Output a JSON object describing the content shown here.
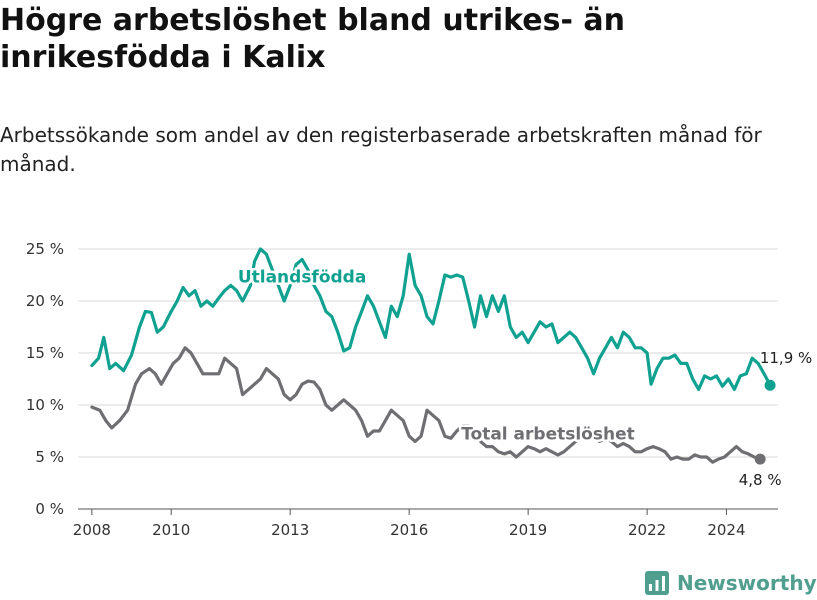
{
  "title": "Högre arbetslöshet bland utrikes- än inrikesfödda i Kalix",
  "subtitle": "Arbetssökande som andel av den registerbaserade arbetskraften månad för månad.",
  "brand": "Newsworthy",
  "colors": {
    "utlandsfodda": "#10a191",
    "total": "#6f6f73",
    "grid": "#d9d9d9",
    "axis": "#555555",
    "brand": "#4f9e8e"
  },
  "chart_data": {
    "type": "line",
    "xlabel": "",
    "ylabel": "",
    "xlim": [
      2007.65,
      2025.3
    ],
    "ylim": [
      0,
      25
    ],
    "grid": true,
    "y_ticks": [
      {
        "value": 0,
        "label": "0 %"
      },
      {
        "value": 5,
        "label": "5 %"
      },
      {
        "value": 10,
        "label": "10 %"
      },
      {
        "value": 15,
        "label": "15 %"
      },
      {
        "value": 20,
        "label": "20 %"
      },
      {
        "value": 25,
        "label": "25 %"
      }
    ],
    "x_ticks": [
      {
        "value": 2008,
        "label": "2008"
      },
      {
        "value": 2010,
        "label": "2010"
      },
      {
        "value": 2013,
        "label": "2013"
      },
      {
        "value": 2016,
        "label": "2016"
      },
      {
        "value": 2019,
        "label": "2019"
      },
      {
        "value": 2022,
        "label": "2022"
      },
      {
        "value": 2024,
        "label": "2024"
      }
    ],
    "series": [
      {
        "name": "Utlandsfödda",
        "color": "#10a191",
        "end_label": "11,9 %",
        "points": [
          [
            2008.0,
            13.8
          ],
          [
            2008.17,
            14.5
          ],
          [
            2008.3,
            16.5
          ],
          [
            2008.45,
            13.5
          ],
          [
            2008.6,
            14.0
          ],
          [
            2008.8,
            13.3
          ],
          [
            2009.0,
            14.8
          ],
          [
            2009.2,
            17.5
          ],
          [
            2009.35,
            19.0
          ],
          [
            2009.5,
            18.9
          ],
          [
            2009.65,
            17.0
          ],
          [
            2009.8,
            17.5
          ],
          [
            2010.0,
            19.0
          ],
          [
            2010.15,
            20.0
          ],
          [
            2010.3,
            21.3
          ],
          [
            2010.45,
            20.5
          ],
          [
            2010.6,
            21.0
          ],
          [
            2010.75,
            19.5
          ],
          [
            2010.9,
            20.0
          ],
          [
            2011.05,
            19.5
          ],
          [
            2011.2,
            20.3
          ],
          [
            2011.35,
            21.0
          ],
          [
            2011.5,
            21.5
          ],
          [
            2011.65,
            21.0
          ],
          [
            2011.8,
            20.0
          ],
          [
            2012.0,
            21.5
          ],
          [
            2012.1,
            23.8
          ],
          [
            2012.25,
            25.0
          ],
          [
            2012.4,
            24.5
          ],
          [
            2012.55,
            23.0
          ],
          [
            2012.7,
            21.5
          ],
          [
            2012.85,
            20.0
          ],
          [
            2013.0,
            21.5
          ],
          [
            2013.15,
            23.5
          ],
          [
            2013.3,
            24.0
          ],
          [
            2013.45,
            23.0
          ],
          [
            2013.6,
            21.5
          ],
          [
            2013.75,
            20.5
          ],
          [
            2013.9,
            19.0
          ],
          [
            2014.05,
            18.5
          ],
          [
            2014.2,
            17.0
          ],
          [
            2014.35,
            15.2
          ],
          [
            2014.5,
            15.5
          ],
          [
            2014.65,
            17.5
          ],
          [
            2014.8,
            19.0
          ],
          [
            2014.95,
            20.5
          ],
          [
            2015.1,
            19.5
          ],
          [
            2015.25,
            18.0
          ],
          [
            2015.4,
            16.5
          ],
          [
            2015.55,
            19.5
          ],
          [
            2015.7,
            18.5
          ],
          [
            2015.85,
            20.5
          ],
          [
            2016.0,
            24.5
          ],
          [
            2016.15,
            21.5
          ],
          [
            2016.3,
            20.5
          ],
          [
            2016.45,
            18.5
          ],
          [
            2016.6,
            17.8
          ],
          [
            2016.75,
            20.0
          ],
          [
            2016.9,
            22.5
          ],
          [
            2017.05,
            22.3
          ],
          [
            2017.2,
            22.5
          ],
          [
            2017.35,
            22.3
          ],
          [
            2017.5,
            20.0
          ],
          [
            2017.65,
            17.5
          ],
          [
            2017.8,
            20.5
          ],
          [
            2017.95,
            18.5
          ],
          [
            2018.1,
            20.5
          ],
          [
            2018.25,
            19.0
          ],
          [
            2018.4,
            20.5
          ],
          [
            2018.55,
            17.5
          ],
          [
            2018.7,
            16.5
          ],
          [
            2018.85,
            17.0
          ],
          [
            2019.0,
            16.0
          ],
          [
            2019.15,
            17.0
          ],
          [
            2019.3,
            18.0
          ],
          [
            2019.45,
            17.5
          ],
          [
            2019.6,
            17.8
          ],
          [
            2019.75,
            16.0
          ],
          [
            2019.9,
            16.5
          ],
          [
            2020.05,
            17.0
          ],
          [
            2020.2,
            16.5
          ],
          [
            2020.35,
            15.5
          ],
          [
            2020.5,
            14.5
          ],
          [
            2020.65,
            13.0
          ],
          [
            2020.8,
            14.5
          ],
          [
            2020.95,
            15.5
          ],
          [
            2021.1,
            16.5
          ],
          [
            2021.25,
            15.5
          ],
          [
            2021.4,
            17.0
          ],
          [
            2021.55,
            16.5
          ],
          [
            2021.7,
            15.5
          ],
          [
            2021.85,
            15.5
          ],
          [
            2022.0,
            15.0
          ],
          [
            2022.1,
            12.0
          ],
          [
            2022.25,
            13.5
          ],
          [
            2022.4,
            14.5
          ],
          [
            2022.55,
            14.5
          ],
          [
            2022.7,
            14.8
          ],
          [
            2022.85,
            14.0
          ],
          [
            2023.0,
            14.0
          ],
          [
            2023.15,
            12.5
          ],
          [
            2023.3,
            11.5
          ],
          [
            2023.45,
            12.8
          ],
          [
            2023.6,
            12.5
          ],
          [
            2023.75,
            12.8
          ],
          [
            2023.9,
            11.8
          ],
          [
            2024.05,
            12.5
          ],
          [
            2024.2,
            11.5
          ],
          [
            2024.35,
            12.8
          ],
          [
            2024.5,
            13.0
          ],
          [
            2024.65,
            14.5
          ],
          [
            2024.8,
            14.0
          ],
          [
            2024.95,
            13.0
          ],
          [
            2025.1,
            11.9
          ]
        ]
      },
      {
        "name": "Total arbetslöshet",
        "color": "#6f6f73",
        "end_label": "4,8 %",
        "points": [
          [
            2008.0,
            9.8
          ],
          [
            2008.2,
            9.5
          ],
          [
            2008.35,
            8.5
          ],
          [
            2008.5,
            7.8
          ],
          [
            2008.7,
            8.5
          ],
          [
            2008.9,
            9.5
          ],
          [
            2009.1,
            12.0
          ],
          [
            2009.25,
            13.0
          ],
          [
            2009.45,
            13.5
          ],
          [
            2009.6,
            13.0
          ],
          [
            2009.75,
            12.0
          ],
          [
            2009.9,
            13.0
          ],
          [
            2010.05,
            14.0
          ],
          [
            2010.2,
            14.5
          ],
          [
            2010.35,
            15.5
          ],
          [
            2010.5,
            15.0
          ],
          [
            2010.65,
            14.0
          ],
          [
            2010.8,
            13.0
          ],
          [
            2011.0,
            13.0
          ],
          [
            2011.2,
            13.0
          ],
          [
            2011.35,
            14.5
          ],
          [
            2011.5,
            14.0
          ],
          [
            2011.65,
            13.5
          ],
          [
            2011.8,
            11.0
          ],
          [
            2011.95,
            11.5
          ],
          [
            2012.1,
            12.0
          ],
          [
            2012.25,
            12.5
          ],
          [
            2012.4,
            13.5
          ],
          [
            2012.55,
            13.0
          ],
          [
            2012.7,
            12.5
          ],
          [
            2012.85,
            11.0
          ],
          [
            2013.0,
            10.5
          ],
          [
            2013.15,
            11.0
          ],
          [
            2013.3,
            12.0
          ],
          [
            2013.45,
            12.3
          ],
          [
            2013.6,
            12.2
          ],
          [
            2013.75,
            11.5
          ],
          [
            2013.9,
            10.0
          ],
          [
            2014.05,
            9.5
          ],
          [
            2014.2,
            10.0
          ],
          [
            2014.35,
            10.5
          ],
          [
            2014.5,
            10.0
          ],
          [
            2014.65,
            9.5
          ],
          [
            2014.8,
            8.5
          ],
          [
            2014.95,
            7.0
          ],
          [
            2015.1,
            7.5
          ],
          [
            2015.25,
            7.5
          ],
          [
            2015.4,
            8.5
          ],
          [
            2015.55,
            9.5
          ],
          [
            2015.7,
            9.0
          ],
          [
            2015.85,
            8.5
          ],
          [
            2016.0,
            7.0
          ],
          [
            2016.15,
            6.5
          ],
          [
            2016.3,
            7.0
          ],
          [
            2016.45,
            9.5
          ],
          [
            2016.6,
            9.0
          ],
          [
            2016.75,
            8.5
          ],
          [
            2016.9,
            7.0
          ],
          [
            2017.05,
            6.8
          ],
          [
            2017.2,
            7.5
          ],
          [
            2017.35,
            8.0
          ],
          [
            2017.5,
            8.0
          ],
          [
            2017.65,
            7.5
          ],
          [
            2017.8,
            6.5
          ],
          [
            2017.95,
            6.0
          ],
          [
            2018.1,
            6.0
          ],
          [
            2018.25,
            5.5
          ],
          [
            2018.4,
            5.3
          ],
          [
            2018.55,
            5.5
          ],
          [
            2018.7,
            5.0
          ],
          [
            2018.85,
            5.5
          ],
          [
            2019.0,
            6.0
          ],
          [
            2019.15,
            5.8
          ],
          [
            2019.3,
            5.5
          ],
          [
            2019.45,
            5.8
          ],
          [
            2019.6,
            5.5
          ],
          [
            2019.75,
            5.2
          ],
          [
            2019.9,
            5.5
          ],
          [
            2020.05,
            6.0
          ],
          [
            2020.2,
            6.5
          ],
          [
            2020.35,
            7.0
          ],
          [
            2020.5,
            7.3
          ],
          [
            2020.65,
            7.0
          ],
          [
            2020.8,
            6.5
          ],
          [
            2020.95,
            6.8
          ],
          [
            2021.1,
            6.5
          ],
          [
            2021.25,
            6.0
          ],
          [
            2021.4,
            6.3
          ],
          [
            2021.55,
            6.0
          ],
          [
            2021.7,
            5.5
          ],
          [
            2021.85,
            5.5
          ],
          [
            2022.0,
            5.8
          ],
          [
            2022.15,
            6.0
          ],
          [
            2022.3,
            5.8
          ],
          [
            2022.45,
            5.5
          ],
          [
            2022.6,
            4.8
          ],
          [
            2022.75,
            5.0
          ],
          [
            2022.9,
            4.8
          ],
          [
            2023.05,
            4.8
          ],
          [
            2023.2,
            5.2
          ],
          [
            2023.35,
            5.0
          ],
          [
            2023.5,
            5.0
          ],
          [
            2023.65,
            4.5
          ],
          [
            2023.8,
            4.8
          ],
          [
            2023.95,
            5.0
          ],
          [
            2024.1,
            5.5
          ],
          [
            2024.25,
            6.0
          ],
          [
            2024.4,
            5.5
          ],
          [
            2024.55,
            5.3
          ],
          [
            2024.7,
            5.0
          ],
          [
            2024.85,
            4.8
          ]
        ]
      }
    ],
    "annotations": [
      {
        "text": "Utlandsfödda",
        "series": 0,
        "x": 2013.3,
        "y": 21.8
      },
      {
        "text": "Total arbetslöshet",
        "series": 1,
        "x": 2019.5,
        "y": 6.7
      }
    ]
  }
}
